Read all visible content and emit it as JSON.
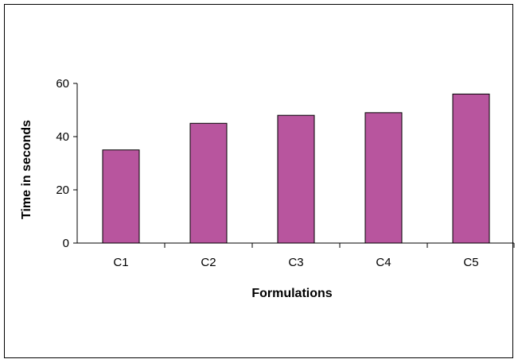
{
  "chart_data": {
    "type": "bar",
    "categories": [
      "C1",
      "C2",
      "C3",
      "C4",
      "C5"
    ],
    "values": [
      35,
      45,
      48,
      49,
      56
    ],
    "title": "",
    "xlabel": "Formulations",
    "ylabel": "Time in seconds",
    "ylim": [
      0,
      60
    ],
    "yticks": [
      0,
      20,
      40,
      60
    ],
    "ytick_labels": [
      "0",
      "20",
      "40",
      "60"
    ],
    "grid": false,
    "legend": "none",
    "bar_color": "#b8559e",
    "bar_edge_color": "#000000"
  }
}
